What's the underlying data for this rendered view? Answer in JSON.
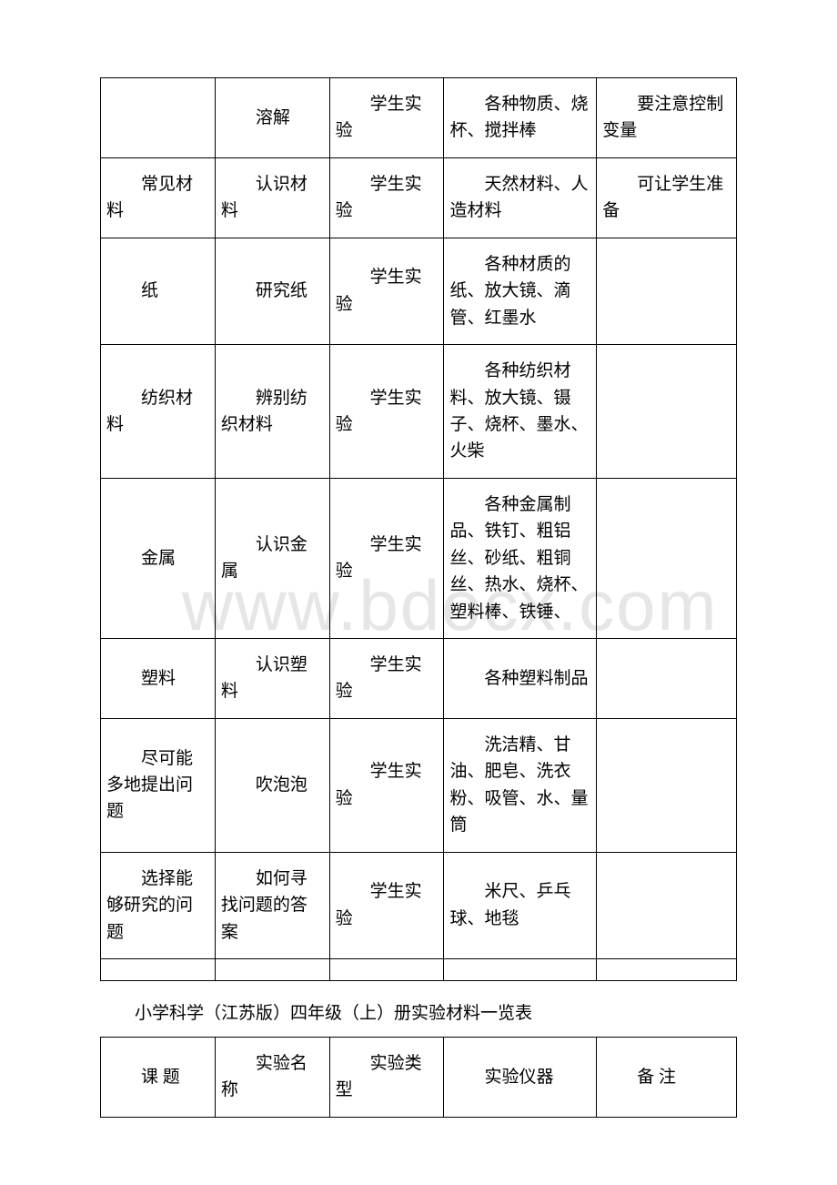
{
  "watermark": "www.bdocx.com",
  "table1": {
    "rows": [
      {
        "c1": "",
        "c2": "溶解",
        "c3": "学生实验",
        "c4": "各种物质、烧杯、搅拌棒",
        "c5": "要注意控制变量"
      },
      {
        "c1": "常见材料",
        "c2": "认识材料",
        "c3": "学生实验",
        "c4": "天然材料、人造材料",
        "c5": "可让学生准备"
      },
      {
        "c1": "纸",
        "c2": "研究纸",
        "c3": "学生实验",
        "c4": "各种材质的纸、放大镜、滴管、红墨水",
        "c5": ""
      },
      {
        "c1": "纺织材料",
        "c2": "辨别纺织材料",
        "c3": "学生实验",
        "c4": "各种纺织材料、放大镜、镊子、烧杯、墨水、火柴",
        "c5": ""
      },
      {
        "c1": "金属",
        "c2": "认识金属",
        "c3": "学生实验",
        "c4": "各种金属制品、铁钉、粗铝丝、砂纸、粗铜丝、热水、烧杯、塑料棒、铁锤、",
        "c5": ""
      },
      {
        "c1": "塑料",
        "c2": "认识塑料",
        "c3": "学生实验",
        "c4": "各种塑料制品",
        "c5": ""
      },
      {
        "c1": "尽可能多地提出问题",
        "c2": "吹泡泡",
        "c3": "学生实验",
        "c4": "洗洁精、甘油、肥皂、洗衣粉、吸管、水、量筒",
        "c5": ""
      },
      {
        "c1": "选择能够研究的问题",
        "c2": "如何寻找问题的答案",
        "c3": "学生实验",
        "c4": "米尺、乒乓球、地毯",
        "c5": ""
      }
    ]
  },
  "caption2": "小学科学（江苏版）四年级（上）册实验材料一览表",
  "table2": {
    "header": {
      "c1": "课 题",
      "c2": "实验名称",
      "c3": "实验类型",
      "c4": "实验仪器",
      "c5": "备 注"
    }
  }
}
